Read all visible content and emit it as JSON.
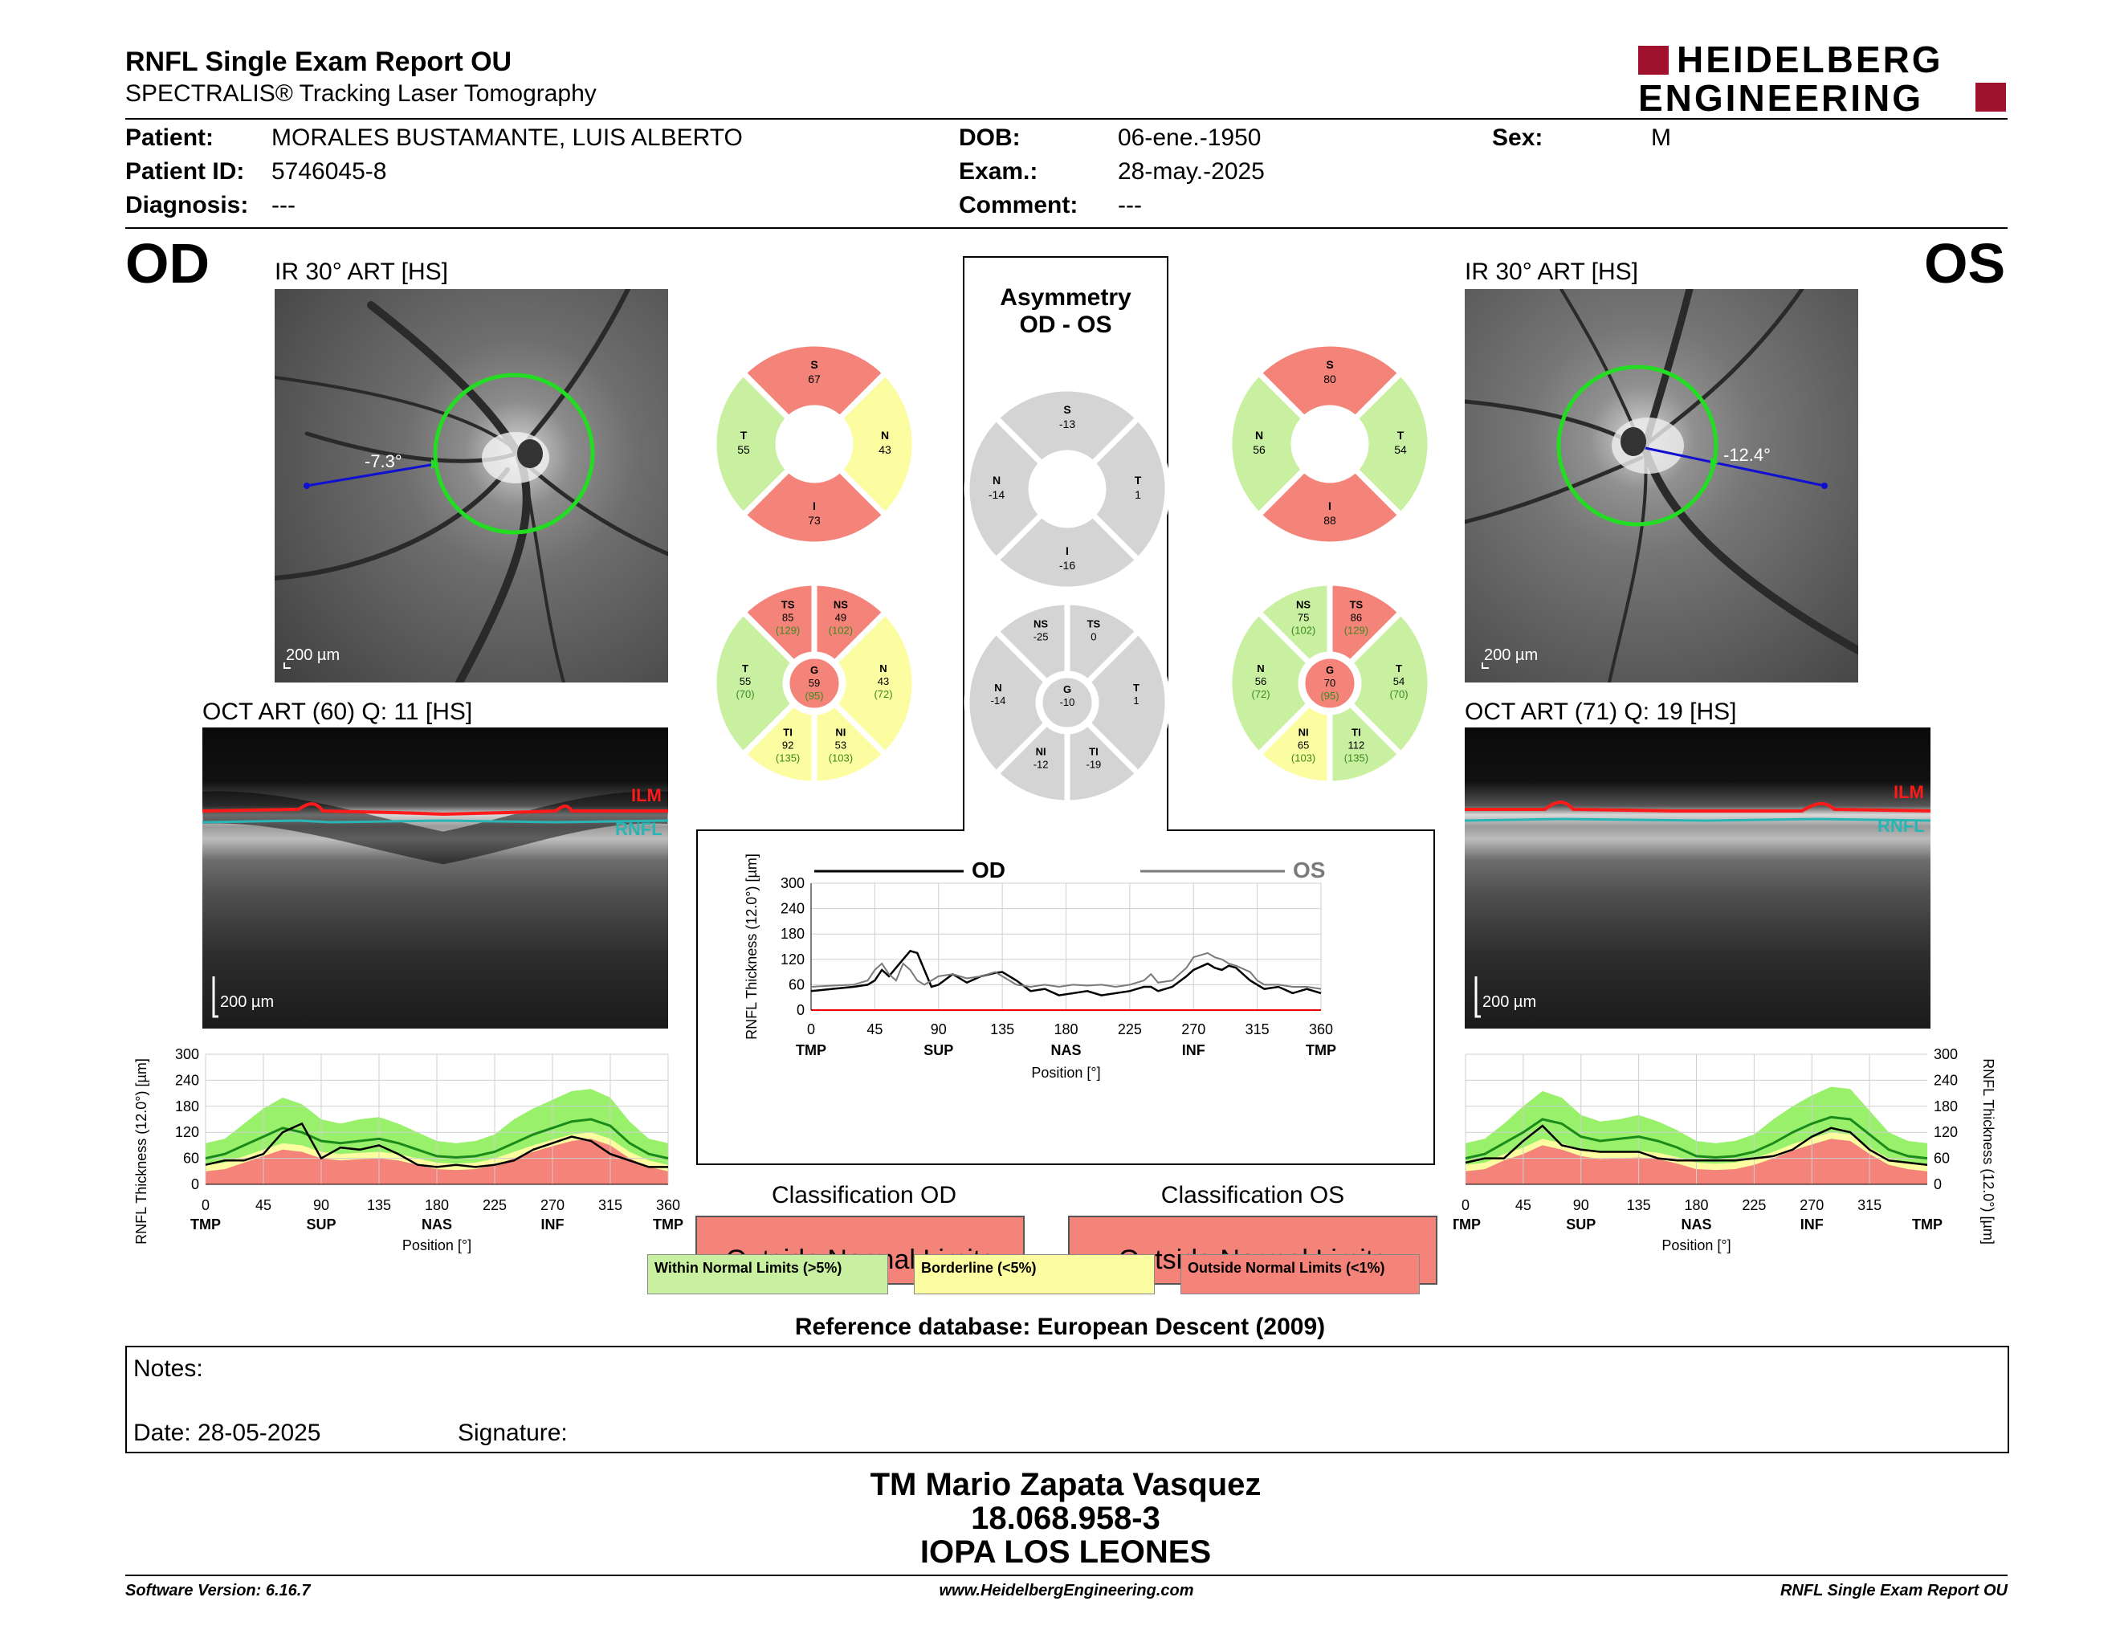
{
  "header": {
    "title": "RNFL Single Exam Report OU",
    "subtitle": "SPECTRALIS® Tracking Laser Tomography",
    "logo_line1": "HEIDELBERG",
    "logo_line2": "ENGINEERING",
    "logo_color": "#a0112e"
  },
  "patient": {
    "patient_label": "Patient:",
    "patient_value": "MORALES BUSTAMANTE, LUIS ALBERTO",
    "id_label": "Patient ID:",
    "id_value": "5746045-8",
    "diag_label": "Diagnosis:",
    "diag_value": "---",
    "dob_label": "DOB:",
    "dob_value": "06-ene.-1950",
    "exam_label": "Exam.:",
    "exam_value": "28-may.-2025",
    "comment_label": "Comment:",
    "comment_value": "---",
    "sex_label": "Sex:",
    "sex_value": "M"
  },
  "od": {
    "eye": "OD",
    "ir_label": "IR 30° ART [HS]",
    "angle": "-7.3°",
    "ir_scale": "200 µm",
    "oct_label": "OCT ART (60) Q: 11 [HS]",
    "oct_scale": "200 µm",
    "ilm": "ILM",
    "rnfl": "RNFL",
    "quad": {
      "S": "67",
      "N": "43",
      "I": "73",
      "T": "55"
    },
    "sect": {
      "TS": [
        "85",
        "(129)"
      ],
      "NS": [
        "49",
        "(102)"
      ],
      "N": [
        "43",
        "(72)"
      ],
      "NI": [
        "53",
        "(103)"
      ],
      "TI": [
        "92",
        "(135)"
      ],
      "T": [
        "55",
        "(70)"
      ],
      "G": [
        "59",
        "(95)"
      ]
    },
    "classification_title": "Classification OD",
    "classification": "Outside Normal Limits"
  },
  "os": {
    "eye": "OS",
    "ir_label": "IR 30° ART [HS]",
    "angle": "-12.4°",
    "ir_scale": "200 µm",
    "oct_label": "OCT ART (71) Q: 19 [HS]",
    "oct_scale": "200 µm",
    "ilm": "ILM",
    "rnfl": "RNFL",
    "quad": {
      "S": "80",
      "N": "56",
      "I": "88",
      "T": "54"
    },
    "sect": {
      "NS": [
        "75",
        "(102)"
      ],
      "TS": [
        "86",
        "(129)"
      ],
      "T": [
        "54",
        "(70)"
      ],
      "TI": [
        "112",
        "(135)"
      ],
      "NI": [
        "65",
        "(103)"
      ],
      "N": [
        "56",
        "(72)"
      ],
      "G": [
        "70",
        "(95)"
      ]
    },
    "classification_title": "Classification OS",
    "classification": "Outside Normal Limits"
  },
  "asym": {
    "title1": "Asymmetry",
    "title2": "OD - OS",
    "quad": {
      "S": "-13",
      "N": "-14",
      "I": "-16",
      "T": "1"
    },
    "sect": {
      "NS": "-25",
      "TS": "0",
      "T": "1",
      "TI": "-19",
      "NI": "-12",
      "N": "-14",
      "G": "-10"
    }
  },
  "labels": {
    "S": "S",
    "N": "N",
    "I": "I",
    "T": "T",
    "TS": "TS",
    "NS": "NS",
    "NI": "NI",
    "TI": "TI",
    "G": "G"
  },
  "colors": {
    "red": "#f4837a",
    "green": "#c8f0a0",
    "yellow": "#fcfca0",
    "gray": "#d4d4d4",
    "brightgreen": "#99f06a",
    "od_line": "#000000",
    "os_line": "#7a7a7a"
  },
  "legend": {
    "within": "Within Normal Limits (>5%)",
    "borderline": "Borderline (<5%)",
    "outside": "Outside Normal Limits (<1%)"
  },
  "reference": "Reference database: European Descent (2009)",
  "notes": {
    "notes_label": "Notes:",
    "date_label": "Date: 28-05-2025",
    "signature_label": "Signature:"
  },
  "signer": {
    "name": "TM Mario Zapata Vasquez",
    "rut": "18.068.958-3",
    "institution": "IOPA LOS LEONES"
  },
  "footer": {
    "software": "Software Version: 6.16.7",
    "website": "www.HeidelbergEngineering.com",
    "report": "RNFL Single Exam Report OU"
  },
  "chart_data": [
    {
      "id": "comparison",
      "type": "line",
      "legend": [
        "OD",
        "OS"
      ],
      "ylabel": "RNFL Thickness (12.0°) [µm]",
      "xlabel": "Position [°]",
      "ylim": [
        0,
        300
      ],
      "xlim": [
        0,
        360
      ],
      "yticks": [
        0,
        60,
        120,
        180,
        240,
        300
      ],
      "xticks": [
        0,
        45,
        90,
        135,
        180,
        225,
        270,
        315,
        360
      ],
      "sector_labels": [
        "TMP",
        "SUP",
        "NAS",
        "INF",
        "TMP"
      ],
      "series": [
        {
          "name": "OD",
          "x": [
            0,
            15,
            30,
            40,
            45,
            50,
            55,
            60,
            65,
            70,
            75,
            80,
            85,
            90,
            100,
            110,
            120,
            130,
            135,
            145,
            155,
            165,
            175,
            185,
            195,
            205,
            215,
            225,
            235,
            240,
            245,
            255,
            265,
            270,
            280,
            285,
            290,
            295,
            300,
            310,
            315,
            320,
            330,
            340,
            350,
            360
          ],
          "y": [
            45,
            50,
            55,
            60,
            70,
            95,
            80,
            100,
            120,
            140,
            135,
            95,
            55,
            60,
            85,
            65,
            80,
            88,
            90,
            70,
            45,
            50,
            35,
            40,
            45,
            35,
            40,
            45,
            55,
            55,
            45,
            55,
            80,
            95,
            110,
            100,
            95,
            105,
            100,
            70,
            60,
            50,
            55,
            40,
            50,
            40
          ]
        },
        {
          "name": "OS",
          "x": [
            0,
            15,
            30,
            40,
            45,
            50,
            55,
            60,
            65,
            70,
            75,
            80,
            85,
            90,
            100,
            110,
            120,
            130,
            135,
            145,
            155,
            165,
            175,
            185,
            195,
            205,
            215,
            225,
            235,
            240,
            245,
            255,
            265,
            270,
            280,
            285,
            290,
            295,
            300,
            310,
            315,
            320,
            330,
            340,
            350,
            360
          ],
          "y": [
            55,
            58,
            60,
            70,
            95,
            110,
            85,
            70,
            110,
            95,
            70,
            60,
            70,
            80,
            85,
            75,
            80,
            90,
            80,
            60,
            55,
            60,
            55,
            60,
            58,
            60,
            55,
            60,
            70,
            85,
            65,
            70,
            100,
            125,
            135,
            125,
            120,
            110,
            105,
            90,
            70,
            60,
            60,
            55,
            55,
            50
          ]
        }
      ]
    },
    {
      "id": "od_profile",
      "type": "line",
      "ylabel": "RNFL Thickness (12.0°) [µm]",
      "xlabel": "Position [°]",
      "ylim": [
        0,
        300
      ],
      "xlim": [
        0,
        360
      ],
      "yticks": [
        0,
        60,
        120,
        180,
        240,
        300
      ],
      "xticks": [
        0,
        45,
        90,
        135,
        180,
        225,
        270,
        315,
        360
      ],
      "sector_labels": [
        "TMP",
        "SUP",
        "NAS",
        "INF",
        "TMP"
      ],
      "x": [
        0,
        15,
        30,
        45,
        60,
        75,
        90,
        105,
        120,
        135,
        150,
        165,
        180,
        195,
        210,
        225,
        240,
        255,
        270,
        285,
        300,
        315,
        330,
        345,
        360
      ],
      "normal_mean": [
        60,
        70,
        90,
        110,
        130,
        120,
        100,
        95,
        100,
        105,
        95,
        80,
        65,
        62,
        65,
        75,
        95,
        115,
        130,
        145,
        150,
        135,
        95,
        70,
        60
      ],
      "ninety_five_lower": [
        30,
        35,
        50,
        65,
        80,
        75,
        60,
        55,
        58,
        60,
        55,
        45,
        35,
        33,
        35,
        45,
        60,
        75,
        88,
        100,
        105,
        90,
        60,
        40,
        30
      ],
      "ninety_nine_upper": [
        95,
        105,
        140,
        175,
        200,
        185,
        150,
        140,
        150,
        155,
        140,
        120,
        100,
        95,
        100,
        115,
        150,
        175,
        195,
        215,
        220,
        200,
        145,
        105,
        95
      ],
      "series": [
        {
          "name": "",
          "y": [
            45,
            55,
            55,
            70,
            120,
            140,
            60,
            85,
            80,
            90,
            70,
            45,
            40,
            45,
            40,
            45,
            55,
            80,
            95,
            110,
            100,
            70,
            55,
            40,
            40
          ]
        }
      ]
    },
    {
      "id": "os_profile",
      "type": "line",
      "ylabel": "RNFL Thickness (12.0°) [µm]",
      "xlabel": "Position [°]",
      "ylim": [
        0,
        300
      ],
      "xlim": [
        0,
        360
      ],
      "yticks": [
        0,
        60,
        120,
        180,
        240,
        300
      ],
      "xticks": [
        0,
        45,
        90,
        135,
        180,
        225,
        270,
        315
      ],
      "sector_labels": [
        "TMP",
        "SUP",
        "NAS",
        "INF",
        "TMP"
      ],
      "x": [
        0,
        15,
        30,
        45,
        60,
        75,
        90,
        105,
        120,
        135,
        150,
        165,
        180,
        195,
        210,
        225,
        240,
        255,
        270,
        285,
        300,
        315,
        330,
        345,
        360
      ],
      "normal_mean": [
        60,
        70,
        95,
        120,
        150,
        140,
        110,
        100,
        105,
        110,
        100,
        85,
        65,
        62,
        65,
        75,
        95,
        120,
        140,
        155,
        150,
        115,
        80,
        65,
        60
      ],
      "ninety_five_lower": [
        30,
        35,
        55,
        70,
        90,
        80,
        65,
        58,
        60,
        62,
        58,
        48,
        35,
        33,
        35,
        45,
        60,
        78,
        92,
        105,
        100,
        70,
        45,
        35,
        30
      ],
      "ninety_nine_upper": [
        95,
        105,
        140,
        180,
        215,
        200,
        160,
        145,
        150,
        160,
        145,
        125,
        100,
        95,
        100,
        115,
        150,
        180,
        205,
        225,
        220,
        170,
        120,
        100,
        95
      ],
      "series": [
        {
          "name": "",
          "y": [
            50,
            60,
            60,
            100,
            135,
            90,
            80,
            75,
            75,
            75,
            60,
            55,
            55,
            55,
            55,
            60,
            65,
            80,
            110,
            130,
            120,
            80,
            55,
            50,
            45
          ]
        }
      ]
    }
  ]
}
